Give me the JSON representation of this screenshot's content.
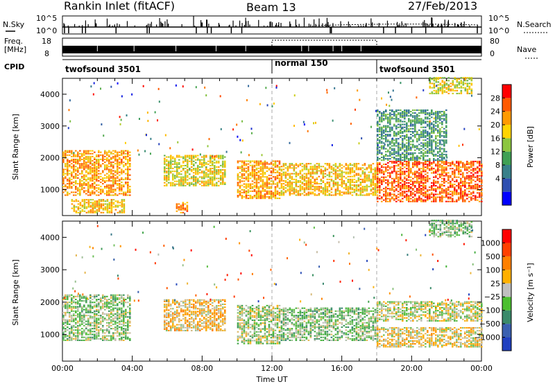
{
  "header": {
    "station": "Rankin Inlet (fitACF)",
    "beam": "Beam 13",
    "date": "27/Feb/2013"
  },
  "summary": {
    "nsky_label": "N.Sky",
    "nsky_ticks": [
      "10^5",
      "10^0"
    ],
    "nsearch_label": "N.Search",
    "nsearch_ticks": [
      "10^5",
      "10^0"
    ],
    "freq_label_top": "Freq.",
    "freq_label_unit": "[MHz]",
    "freq_ticks": [
      "18",
      "8"
    ],
    "nave_label": "Nave",
    "nave_ticks": [
      "80",
      "0"
    ],
    "cpid_label": "CPID",
    "cpid_modes": [
      {
        "name": "twofsound 3501",
        "start_hour": 0,
        "end_hour": 12
      },
      {
        "name": "normal 150",
        "start_hour": 12,
        "end_hour": 18
      },
      {
        "name": "twofsound 3501",
        "start_hour": 18,
        "end_hour": 24
      }
    ]
  },
  "x_axis": {
    "title": "Time UT",
    "ticks": [
      "00:00",
      "04:00",
      "08:00",
      "12:00",
      "16:00",
      "20:00",
      "00:00"
    ],
    "range_hours": [
      0,
      24
    ]
  },
  "panels": [
    {
      "id": "power",
      "ylabel": "Slant Range [km]",
      "yticks": [
        "4000",
        "3000",
        "2000",
        "1000"
      ],
      "colorbar_label": "Power [dB]",
      "colorbar_ticks": [
        "28",
        "24",
        "20",
        "16",
        "12",
        "8",
        "4"
      ],
      "colorbar_colors": [
        "#0000ff",
        "#2e4fb0",
        "#38808a",
        "#3fa054",
        "#8cc63f",
        "#ffd400",
        "#ff9a00",
        "#ff5a00",
        "#ff0000"
      ]
    },
    {
      "id": "velocity",
      "ylabel": "Slant Range [km]",
      "yticks": [
        "4000",
        "3000",
        "2000",
        "1000"
      ],
      "colorbar_label": "Velocity [m s⁻¹]",
      "colorbar_ticks": [
        "1000",
        "500",
        "100",
        "25",
        "−25",
        "−100",
        "−500",
        "−1000"
      ],
      "colorbar_colors": [
        "#2040c0",
        "#3a60b0",
        "#3a8a6a",
        "#4cbf30",
        "#c0c0c0",
        "#ffb000",
        "#ff8000",
        "#ff4000",
        "#ff0000"
      ]
    }
  ],
  "chart_data": {
    "type": "heatmap",
    "title": "Rankin Inlet (fitACF)",
    "xlabel": "Time UT",
    "ylabel": "Slant Range [km]",
    "x_range_hours": [
      0,
      24
    ],
    "y_range_km": [
      180,
      4500
    ],
    "series": [
      {
        "name": "Power [dB]",
        "clim": [
          0,
          30
        ],
        "regions": [
          {
            "t0": 0.0,
            "t1": 3.9,
            "r0": 800,
            "r1": 2200,
            "level": 22
          },
          {
            "t0": 0.5,
            "t1": 3.5,
            "r0": 250,
            "r1": 700,
            "level": 20
          },
          {
            "t0": 5.8,
            "t1": 9.3,
            "r0": 1100,
            "r1": 2050,
            "level": 18
          },
          {
            "t0": 6.5,
            "t1": 7.2,
            "r0": 250,
            "r1": 600,
            "level": 24
          },
          {
            "t0": 10.0,
            "t1": 12.5,
            "r0": 700,
            "r1": 1900,
            "level": 22
          },
          {
            "t0": 12.5,
            "t1": 18.0,
            "r0": 800,
            "r1": 1800,
            "level": 20
          },
          {
            "t0": 18.0,
            "t1": 24.0,
            "r0": 600,
            "r1": 1900,
            "level": 26
          },
          {
            "t0": 18.0,
            "t1": 22.0,
            "r0": 1900,
            "r1": 3500,
            "level": 10
          },
          {
            "t0": 21.0,
            "t1": 23.5,
            "r0": 4000,
            "r1": 4500,
            "level": 18
          }
        ]
      },
      {
        "name": "Velocity [m s⁻¹]",
        "clim": [
          -1000,
          1000
        ],
        "regions": [
          {
            "t0": 0.0,
            "t1": 3.9,
            "r0": 800,
            "r1": 2200,
            "level": -150
          },
          {
            "t0": 5.8,
            "t1": 9.3,
            "r0": 1100,
            "r1": 2050,
            "level": 200
          },
          {
            "t0": 10.0,
            "t1": 12.5,
            "r0": 700,
            "r1": 1900,
            "level": -100
          },
          {
            "t0": 12.5,
            "t1": 18.0,
            "r0": 800,
            "r1": 1800,
            "level": -200
          },
          {
            "t0": 18.0,
            "t1": 24.0,
            "r0": 1400,
            "r1": 2000,
            "level": 0
          },
          {
            "t0": 18.0,
            "t1": 24.0,
            "r0": 600,
            "r1": 1200,
            "level": 120
          },
          {
            "t0": 21.0,
            "t1": 23.5,
            "r0": 4000,
            "r1": 4500,
            "level": -200
          }
        ]
      }
    ]
  }
}
